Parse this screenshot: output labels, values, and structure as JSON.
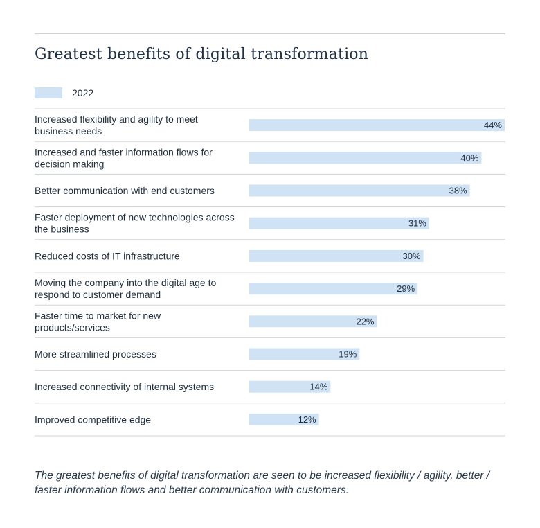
{
  "chart_data": {
    "type": "bar",
    "orientation": "horizontal",
    "title": "Greatest benefits of digital transformation",
    "legend": [
      "2022"
    ],
    "categories": [
      [
        "Increased flexibility and agility to meet",
        "business needs"
      ],
      [
        "Increased and faster information flows for",
        "decision making"
      ],
      [
        "Better communication with end customers"
      ],
      [
        "Faster deployment of new technologies across",
        "the business"
      ],
      [
        "Reduced costs of IT infrastructure"
      ],
      [
        "Moving the company into the digital age to",
        "respond to customer demand"
      ],
      [
        "Faster time to market for new",
        "products/services"
      ],
      [
        "More streamlined processes"
      ],
      [
        "Increased connectivity of internal systems"
      ],
      [
        "Improved competitive edge"
      ]
    ],
    "series": [
      {
        "name": "2022",
        "values": [
          44,
          40,
          38,
          31,
          30,
          29,
          22,
          19,
          14,
          12
        ]
      }
    ],
    "value_labels": [
      "44%",
      "40%",
      "38%",
      "31%",
      "30%",
      "29%",
      "22%",
      "19%",
      "14%",
      "12%"
    ],
    "xlim": [
      0,
      44
    ],
    "bar_color": "#cfe3f5",
    "rule_color": "#cfd3d8"
  },
  "caption": "The greatest benefits of digital transformation are seen to be increased flexibility / agility, better / faster information flows and better communication with customers."
}
